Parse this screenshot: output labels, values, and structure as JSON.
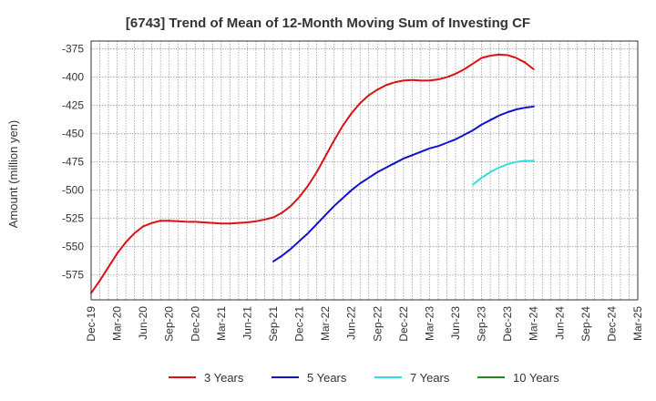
{
  "chart_data": {
    "type": "line",
    "title": "[6743]  Trend of Mean of 12-Month Moving Sum of Investing CF",
    "xlabel": "",
    "ylabel": "Amount (million yen)",
    "ylim": [
      -597,
      -368
    ],
    "y_ticks": [
      -375,
      -400,
      -425,
      -450,
      -475,
      -500,
      -525,
      -550,
      -575
    ],
    "x_ticks": [
      "Dec-19",
      "Mar-20",
      "Jun-20",
      "Sep-20",
      "Dec-20",
      "Mar-21",
      "Jun-21",
      "Sep-21",
      "Dec-21",
      "Mar-22",
      "Jun-22",
      "Sep-22",
      "Dec-22",
      "Mar-23",
      "Jun-23",
      "Sep-23",
      "Dec-23",
      "Mar-24",
      "Jun-24",
      "Sep-24",
      "Dec-24",
      "Mar-25"
    ],
    "grid": true,
    "legend_position": "bottom",
    "series": [
      {
        "name": "3 Years",
        "color": "#dd1111",
        "x": [
          "Dec-19",
          "Jan-20",
          "Feb-20",
          "Mar-20",
          "Apr-20",
          "May-20",
          "Jun-20",
          "Jul-20",
          "Aug-20",
          "Sep-20",
          "Oct-20",
          "Nov-20",
          "Dec-20",
          "Jan-21",
          "Feb-21",
          "Mar-21",
          "Apr-21",
          "May-21",
          "Jun-21",
          "Jul-21",
          "Aug-21",
          "Sep-21",
          "Oct-21",
          "Nov-21",
          "Dec-21",
          "Jan-22",
          "Feb-22",
          "Mar-22",
          "Apr-22",
          "May-22",
          "Jun-22",
          "Jul-22",
          "Aug-22",
          "Sep-22",
          "Oct-22",
          "Nov-22",
          "Dec-22",
          "Jan-23",
          "Feb-23",
          "Mar-23",
          "Apr-23",
          "May-23",
          "Jun-23",
          "Jul-23",
          "Aug-23",
          "Sep-23",
          "Oct-23",
          "Nov-23",
          "Dec-23",
          "Jan-24",
          "Feb-24",
          "Mar-24"
        ],
        "values": [
          -591,
          -580,
          -568,
          -556,
          -546,
          -538,
          -532,
          -529,
          -527,
          -527,
          -527.5,
          -528,
          -528,
          -528.5,
          -529,
          -529.5,
          -529.5,
          -529,
          -528.5,
          -527.5,
          -526,
          -524,
          -520,
          -514,
          -506,
          -496,
          -484,
          -470,
          -456,
          -443,
          -432,
          -423,
          -416,
          -411,
          -407,
          -404.5,
          -403,
          -402.5,
          -403,
          -403,
          -402,
          -400,
          -397,
          -393,
          -388,
          -383,
          -381,
          -380,
          -380.5,
          -383,
          -387,
          -393
        ],
        "label_text": "3 Years"
      },
      {
        "name": "5 Years",
        "color": "#1111cc",
        "x": [
          "Sep-21",
          "Oct-21",
          "Nov-21",
          "Dec-21",
          "Jan-22",
          "Feb-22",
          "Mar-22",
          "Apr-22",
          "May-22",
          "Jun-22",
          "Jul-22",
          "Aug-22",
          "Sep-22",
          "Oct-22",
          "Nov-22",
          "Dec-22",
          "Jan-23",
          "Feb-23",
          "Mar-23",
          "Apr-23",
          "May-23",
          "Jun-23",
          "Jul-23",
          "Aug-23",
          "Sep-23",
          "Oct-23",
          "Nov-23",
          "Dec-23",
          "Jan-24",
          "Feb-24",
          "Mar-24"
        ],
        "values": [
          -563,
          -558,
          -552,
          -545,
          -538,
          -530,
          -522,
          -514,
          -507,
          -500,
          -494,
          -489,
          -484,
          -480,
          -476,
          -472,
          -469,
          -466,
          -463,
          -461,
          -458,
          -455,
          -451,
          -447,
          -442,
          -438,
          -434,
          -431,
          -428.5,
          -427,
          -426
        ],
        "label_text": "5 Years"
      },
      {
        "name": "7 Years",
        "color": "#33dddd",
        "x": [
          "Aug-23",
          "Sep-23",
          "Oct-23",
          "Nov-23",
          "Dec-23",
          "Jan-24",
          "Feb-24",
          "Mar-24"
        ],
        "values": [
          -495,
          -489,
          -484,
          -480,
          -477,
          -475,
          -474,
          -474
        ],
        "label_text": "7 Years"
      },
      {
        "name": "10 Years",
        "color": "#228822",
        "x": [],
        "values": [],
        "label_text": "10 Years"
      }
    ]
  }
}
